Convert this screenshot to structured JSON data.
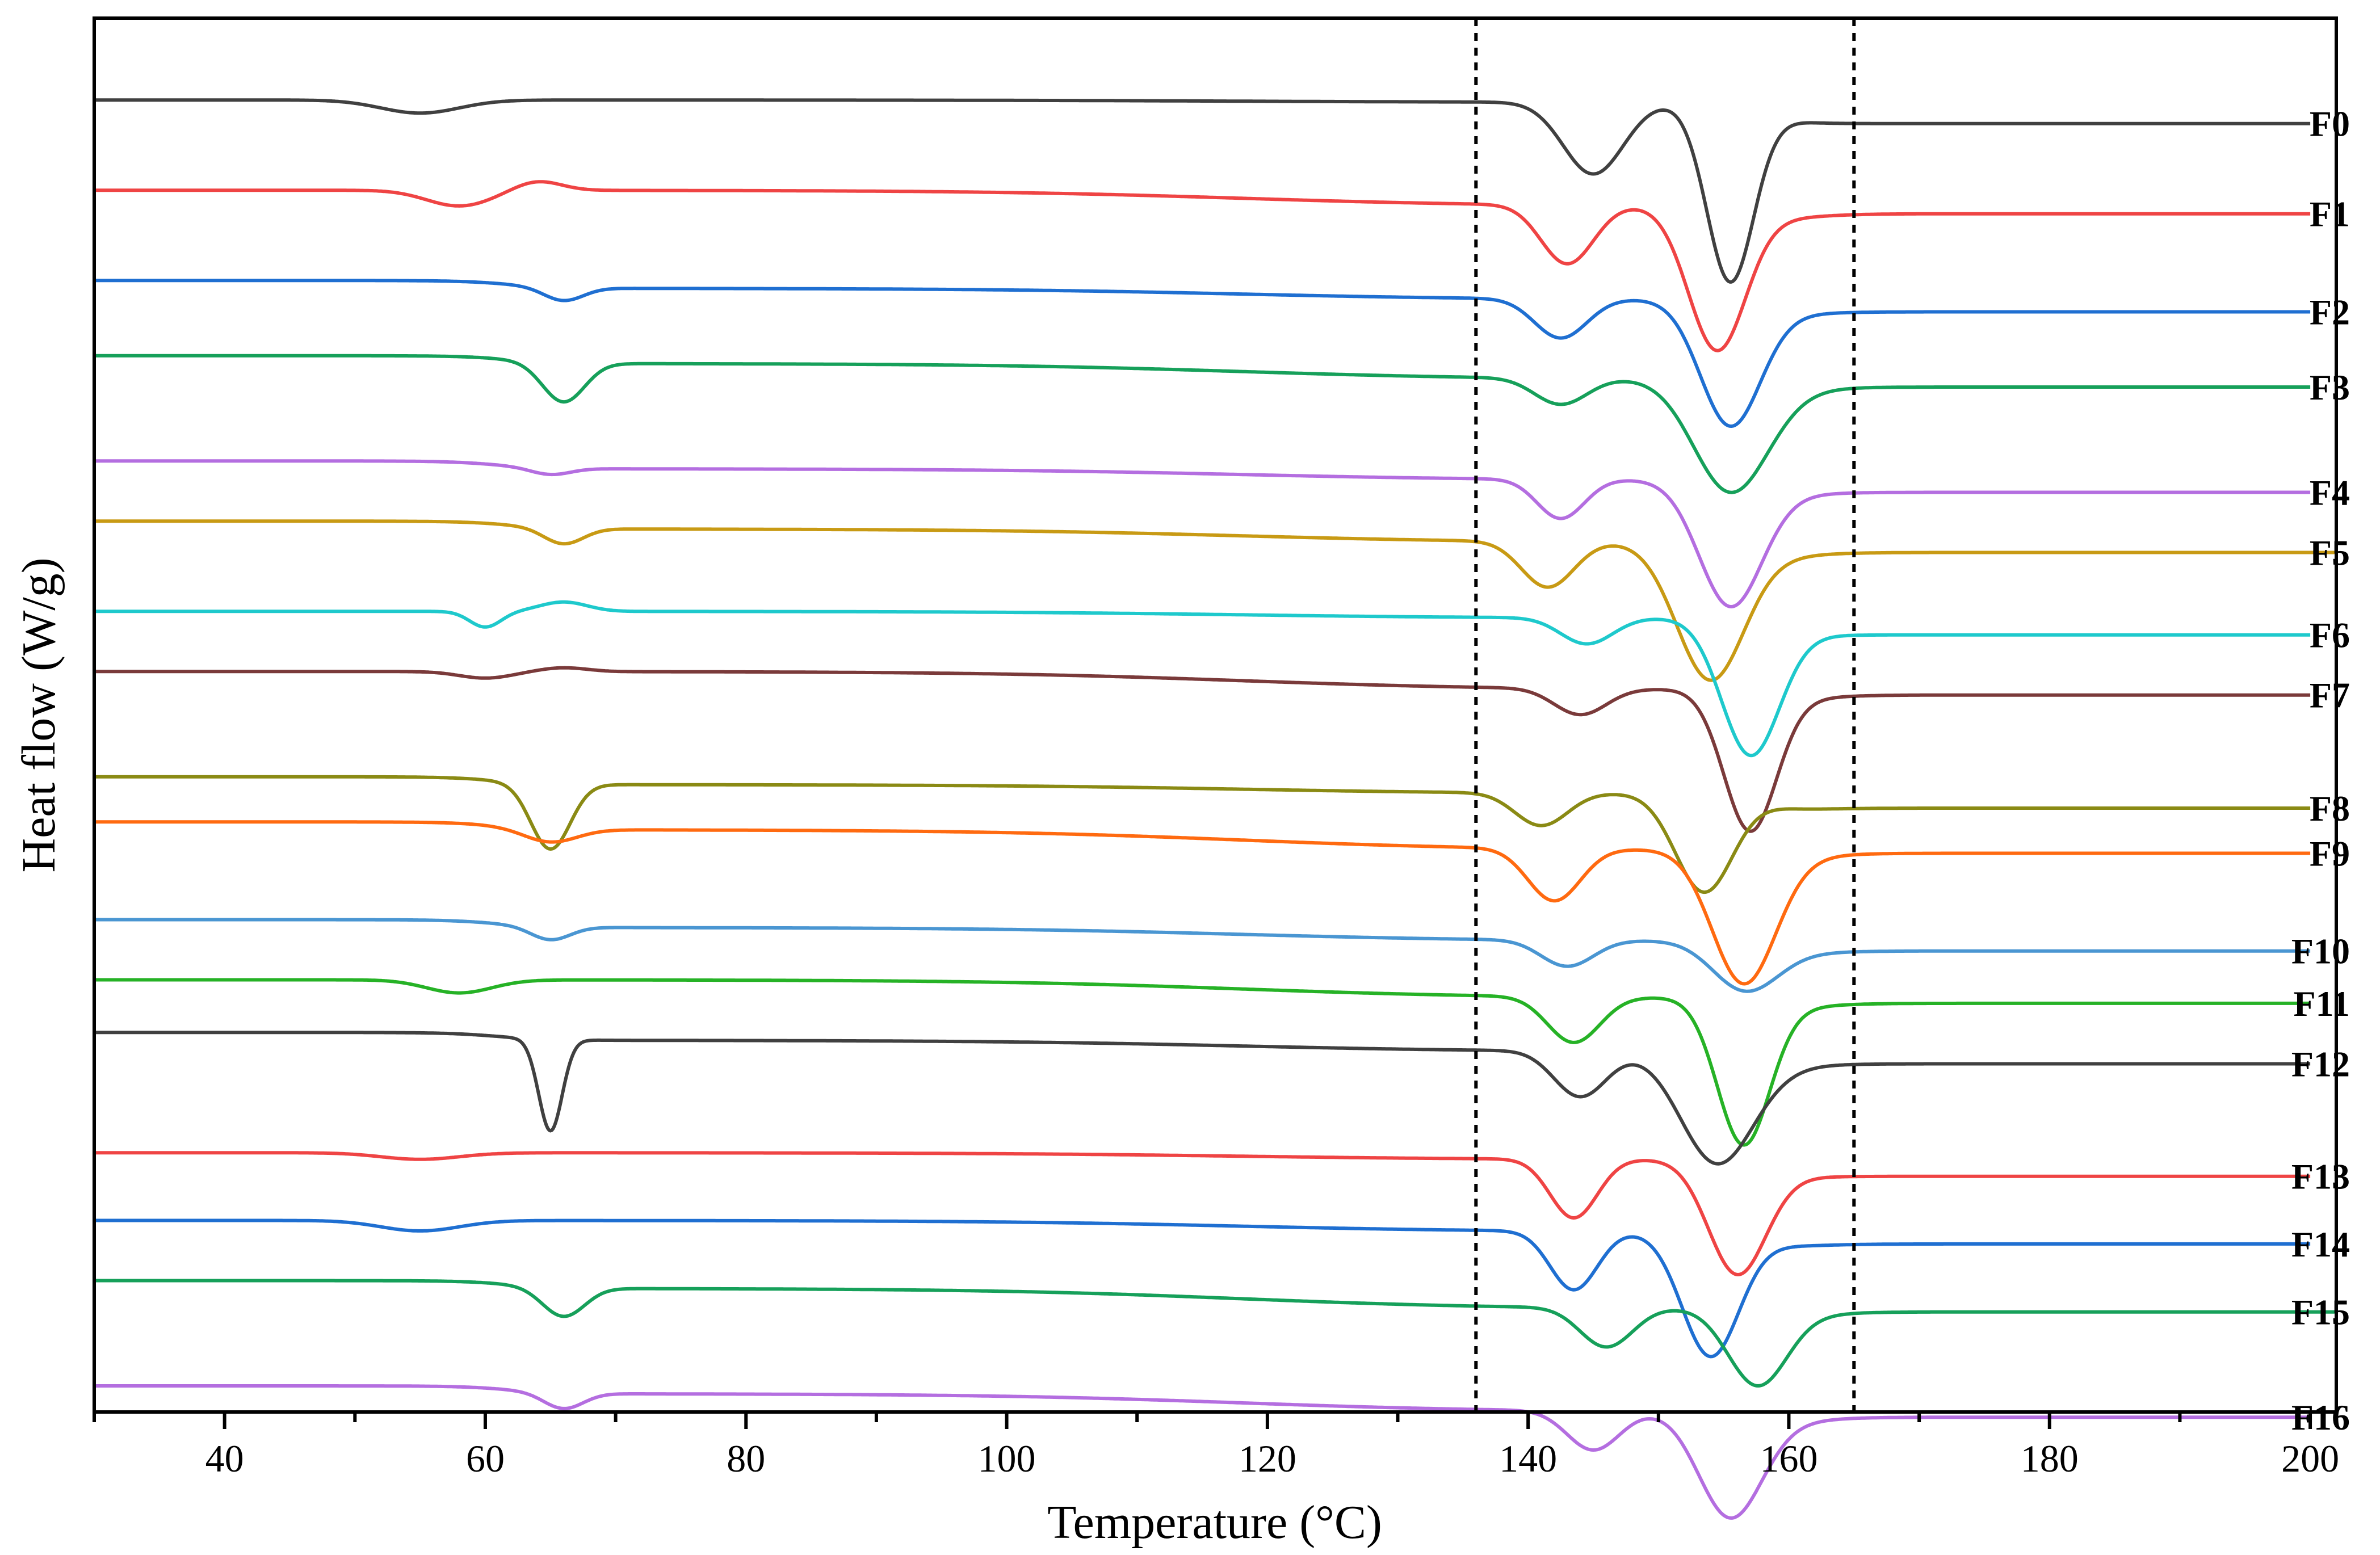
{
  "chart_data": {
    "type": "line",
    "title": "",
    "xlabel": "Temperature (°C)",
    "ylabel": "Heat flow (W/g)",
    "xlim": [
      30,
      202
    ],
    "xticks": [
      40,
      60,
      80,
      100,
      120,
      140,
      160,
      180,
      200
    ],
    "y_axis_ticks": false,
    "grid": false,
    "legend": "inline labels at right end of each curve",
    "reference_lines_x": [
      136,
      165
    ],
    "series": [
      {
        "name": "F0",
        "color": "#404040",
        "offset": 0.35,
        "kind": "flat",
        "minor": {
          "x": 55,
          "a": 0.1,
          "w": 3.0
        },
        "peaks": [
          {
            "x": 145,
            "a": 0.55,
            "w": 2.3
          },
          {
            "x": 155.5,
            "a": 1.35,
            "w": 1.8
          }
        ],
        "drift": 0.05
      },
      {
        "name": "F1",
        "color": "#ef4444",
        "offset": 0.95,
        "kind": "bump",
        "minor": {
          "x": 58,
          "a": 0.12,
          "w": 2.5
        },
        "peaks": [
          {
            "x": 143,
            "a": 0.45,
            "w": 2.0
          },
          {
            "x": 154.5,
            "a": 1.1,
            "w": 2.2
          }
        ],
        "drift": 0.35
      },
      {
        "name": "F2",
        "color": "#1f6fd1",
        "offset": 1.55,
        "kind": "dip",
        "minor": {
          "x": 66,
          "a": 0.1,
          "w": 1.5
        },
        "peaks": [
          {
            "x": 142.5,
            "a": 0.3,
            "w": 2.0
          },
          {
            "x": 155.5,
            "a": 0.95,
            "w": 2.3
          }
        ],
        "drift": 0.25
      },
      {
        "name": "F3",
        "color": "#16a05a",
        "offset": 2.05,
        "kind": "dip",
        "minor": {
          "x": 66,
          "a": 0.3,
          "w": 1.6
        },
        "peaks": [
          {
            "x": 142.5,
            "a": 0.2,
            "w": 2.0
          },
          {
            "x": 155.5,
            "a": 0.85,
            "w": 2.8
          }
        ],
        "drift": 0.35
      },
      {
        "name": "F4",
        "color": "#b46ee0",
        "offset": 2.75,
        "kind": "dip",
        "minor": {
          "x": 65,
          "a": 0.05,
          "w": 1.5
        },
        "peaks": [
          {
            "x": 142.5,
            "a": 0.3,
            "w": 1.8
          },
          {
            "x": 155.5,
            "a": 0.95,
            "w": 2.4
          }
        ],
        "drift": 0.25
      },
      {
        "name": "F5",
        "color": "#c89a14",
        "offset": 3.15,
        "kind": "dip",
        "minor": {
          "x": 66,
          "a": 0.12,
          "w": 1.5
        },
        "peaks": [
          {
            "x": 141.5,
            "a": 0.35,
            "w": 2.0
          },
          {
            "x": 154.0,
            "a": 1.05,
            "w": 2.6
          }
        ],
        "drift": 0.3
      },
      {
        "name": "F6",
        "color": "#1ec9cc",
        "offset": 3.75,
        "kind": "bump",
        "minor": {
          "x": 60,
          "a": 0.12,
          "w": 1.2
        },
        "peaks": [
          {
            "x": 144.5,
            "a": 0.2,
            "w": 2.0
          },
          {
            "x": 157.0,
            "a": 1.0,
            "w": 2.2
          }
        ],
        "drift": 0.15
      },
      {
        "name": "F7",
        "color": "#7a3a3a",
        "offset": 4.15,
        "kind": "bump",
        "minor": {
          "x": 60,
          "a": 0.05,
          "w": 2.0
        },
        "peaks": [
          {
            "x": 144.0,
            "a": 0.2,
            "w": 2.0
          },
          {
            "x": 157.0,
            "a": 1.05,
            "w": 2.0
          }
        ],
        "drift": 0.4
      },
      {
        "name": "F8",
        "color": "#8a8a14",
        "offset": 4.85,
        "kind": "dip",
        "minor": {
          "x": 65,
          "a": 0.5,
          "w": 1.5
        },
        "peaks": [
          {
            "x": 141.0,
            "a": 0.25,
            "w": 2.0
          },
          {
            "x": 153.5,
            "a": 0.75,
            "w": 2.2
          }
        ],
        "drift": 0.2
      },
      {
        "name": "F9",
        "color": "#ff6a10",
        "offset": 5.15,
        "kind": "dip",
        "minor": {
          "x": 65,
          "a": 0.1,
          "w": 2.0
        },
        "peaks": [
          {
            "x": 142.0,
            "a": 0.4,
            "w": 2.0
          },
          {
            "x": 156.5,
            "a": 1.0,
            "w": 2.4
          }
        ],
        "drift": 0.45
      },
      {
        "name": "F10",
        "color": "#4a96d2",
        "offset": 5.8,
        "kind": "dip",
        "minor": {
          "x": 65,
          "a": 0.1,
          "w": 1.5
        },
        "peaks": [
          {
            "x": 143.0,
            "a": 0.2,
            "w": 2.0
          },
          {
            "x": 156.5,
            "a": 0.35,
            "w": 2.4
          }
        ],
        "drift": 0.3
      },
      {
        "name": "F11",
        "color": "#26b226",
        "offset": 6.2,
        "kind": "flat",
        "minor": {
          "x": 58,
          "a": 0.1,
          "w": 2.5
        },
        "peaks": [
          {
            "x": 143.5,
            "a": 0.35,
            "w": 2.0
          },
          {
            "x": 156.5,
            "a": 1.1,
            "w": 2.0
          }
        ],
        "drift": 0.4
      },
      {
        "name": "F12",
        "color": "#404040",
        "offset": 6.55,
        "kind": "dip",
        "minor": {
          "x": 65,
          "a": 0.7,
          "w": 0.9
        },
        "peaks": [
          {
            "x": 144.0,
            "a": 0.35,
            "w": 2.0
          },
          {
            "x": 154.5,
            "a": 0.85,
            "w": 2.8
          }
        ],
        "drift": 0.25
      },
      {
        "name": "F13",
        "color": "#ef4444",
        "offset": 7.35,
        "kind": "flat",
        "minor": {
          "x": 55,
          "a": 0.05,
          "w": 3.0
        },
        "peaks": [
          {
            "x": 143.5,
            "a": 0.45,
            "w": 1.8
          },
          {
            "x": 156.0,
            "a": 0.85,
            "w": 2.2
          }
        ],
        "drift": 0.15
      },
      {
        "name": "F14",
        "color": "#1f6fd1",
        "offset": 7.8,
        "kind": "flat",
        "minor": {
          "x": 55,
          "a": 0.08,
          "w": 3.0
        },
        "peaks": [
          {
            "x": 143.5,
            "a": 0.45,
            "w": 1.8
          },
          {
            "x": 154.0,
            "a": 0.95,
            "w": 2.2
          }
        ],
        "drift": 0.25
      },
      {
        "name": "F15",
        "color": "#16a05a",
        "offset": 8.2,
        "kind": "dip",
        "minor": {
          "x": 66,
          "a": 0.22,
          "w": 1.6
        },
        "peaks": [
          {
            "x": 146.0,
            "a": 0.3,
            "w": 2.0
          },
          {
            "x": 157.5,
            "a": 0.55,
            "w": 2.2
          }
        ],
        "drift": 0.45
      },
      {
        "name": "F16",
        "color": "#b46ee0",
        "offset": 8.9,
        "kind": "dip",
        "minor": {
          "x": 66,
          "a": 0.12,
          "w": 1.5
        },
        "peaks": [
          {
            "x": 145.0,
            "a": 0.3,
            "w": 2.0
          },
          {
            "x": 155.5,
            "a": 0.8,
            "w": 2.4
          }
        ],
        "drift": 0.4
      }
    ]
  }
}
